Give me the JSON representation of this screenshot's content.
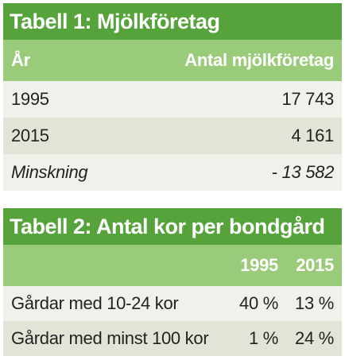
{
  "table1": {
    "title": "Tabell 1: Mjölkföretag",
    "headers": [
      "År",
      "Antal mjölkföretag"
    ],
    "rows": [
      {
        "label": "1995",
        "value": "17 743"
      },
      {
        "label": "2015",
        "value": "4 161"
      },
      {
        "label": "Minskning",
        "value": "- 13 582"
      }
    ]
  },
  "table2": {
    "title": "Tabell 2: Antal kor per bondgård",
    "headers": [
      "",
      "1995",
      "2015"
    ],
    "rows": [
      {
        "label": "Gårdar med 10-24 kor",
        "v1995": "40 %",
        "v2015": "13 %"
      },
      {
        "label": "Gårdar med minst 100 kor",
        "v1995": "1 %",
        "v2015": "24 %"
      }
    ]
  },
  "colors": {
    "title_green": "#55a33a",
    "header_green": "#9acb7a",
    "row_light": "#f1f1ec",
    "row_dark": "#e1e5d7"
  }
}
